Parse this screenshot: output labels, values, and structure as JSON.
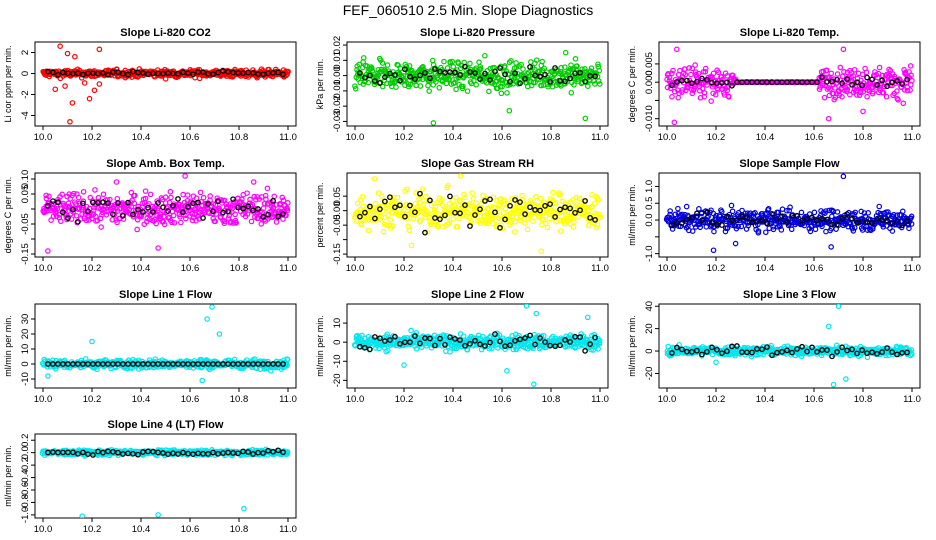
{
  "page": {
    "title": "FEF_060510  2.5 Min. Slope Diagnostics"
  },
  "chart_data": [
    {
      "type": "scatter",
      "title": "Slope Li-820 CO2",
      "ylabel": "Li cor ppm per min.",
      "color": "#ff0000",
      "xlim": [
        10.0,
        11.0
      ],
      "xticks": [
        "10.0",
        "10.2",
        "10.4",
        "10.6",
        "10.8",
        "11.0"
      ],
      "ylim": [
        -5,
        3
      ],
      "yticks": [
        -4,
        -2,
        0,
        2
      ],
      "ytick_labels": [
        "-4",
        "-2",
        "0",
        "2"
      ],
      "spread": 0.35,
      "outliers": [
        [
          10.07,
          2.6
        ],
        [
          10.11,
          -4.6
        ],
        [
          10.12,
          -2.8
        ],
        [
          10.13,
          1.6
        ],
        [
          10.09,
          -1.2
        ],
        [
          10.19,
          -2.4
        ],
        [
          10.21,
          -1.6
        ],
        [
          10.23,
          -1.0
        ],
        [
          10.1,
          1.9
        ],
        [
          10.17,
          -0.9
        ],
        [
          10.23,
          2.3
        ],
        [
          10.05,
          -1.5
        ]
      ],
      "black_spread": 0.2,
      "flat_segment": null
    },
    {
      "type": "scatter",
      "title": "Slope Li-820 Pressure",
      "ylabel": "kPa per min.",
      "color": "#00cc00",
      "xlim": [
        10.0,
        11.0
      ],
      "xticks": [
        "10.0",
        "10.2",
        "10.4",
        "10.6",
        "10.8",
        "11.0"
      ],
      "ylim": [
        -0.033,
        0.022
      ],
      "yticks": [
        -0.03,
        -0.02,
        -0.01,
        0,
        0.01,
        0.02
      ],
      "ytick_labels": [
        "-0.03",
        "-0.02",
        "-0.01",
        "0.00",
        "0.01",
        "0.02"
      ],
      "spread": 0.009,
      "outliers": [
        [
          10.32,
          -0.031
        ],
        [
          10.94,
          -0.028
        ],
        [
          10.63,
          -0.023
        ],
        [
          10.9,
          0.011
        ],
        [
          10.53,
          0.013
        ],
        [
          10.86,
          0.015
        ]
      ],
      "black_spread": 0.006,
      "flat_segment": null
    },
    {
      "type": "scatter",
      "title": "Slope Li-820 Temp.",
      "ylabel": "degrees C per min.",
      "color": "#ff00ff",
      "xlim": [
        10.0,
        11.0
      ],
      "xticks": [
        "10.0",
        "10.2",
        "10.4",
        "10.6",
        "10.8",
        "11.0"
      ],
      "ylim": [
        -0.012,
        0.011
      ],
      "yticks": [
        -0.01,
        -0.005,
        0,
        0.005
      ],
      "ytick_labels": [
        "-0.010",
        "0.000",
        "0.005"
      ],
      "ytick_label_at": [
        -0.01,
        0,
        0.005
      ],
      "spread": 0.004,
      "outliers": [
        [
          10.03,
          -0.011
        ],
        [
          10.04,
          0.009
        ],
        [
          10.66,
          -0.01
        ],
        [
          10.72,
          0.009
        ],
        [
          10.8,
          -0.008
        ]
      ],
      "black_spread": 0.002,
      "flat_segment": [
        10.28,
        10.62
      ]
    },
    {
      "type": "scatter",
      "title": "Slope Amb. Box Temp.",
      "ylabel": "degrees C per min.",
      "color": "#ff00ff",
      "xlim": [
        10.0,
        11.0
      ],
      "xticks": [
        "10.0",
        "10.2",
        "10.4",
        "10.6",
        "10.8",
        "11.0"
      ],
      "ylim": [
        -0.16,
        0.12
      ],
      "yticks": [
        -0.15,
        -0.1,
        -0.05,
        0,
        0.05,
        0.1
      ],
      "ytick_labels": [
        "-0.15",
        "-0.05",
        "0.05",
        "0.10"
      ],
      "ytick_label_at": [
        -0.15,
        -0.05,
        0.05,
        0.1
      ],
      "spread": 0.05,
      "outliers": [
        [
          10.02,
          -0.14
        ],
        [
          10.47,
          -0.13
        ],
        [
          10.58,
          0.11
        ],
        [
          10.3,
          0.09
        ],
        [
          10.86,
          0.09
        ]
      ],
      "black_spread": 0.04,
      "flat_segment": null
    },
    {
      "type": "scatter",
      "title": "Slope Gas Stream RH",
      "ylabel": "percent per min.",
      "color": "#ffff00",
      "xlim": [
        10.0,
        11.0
      ],
      "xticks": [
        "10.0",
        "10.2",
        "10.4",
        "10.6",
        "10.8",
        "11.0"
      ],
      "ylim": [
        -0.16,
        0.13
      ],
      "yticks": [
        -0.15,
        -0.1,
        -0.05,
        0,
        0.05
      ],
      "ytick_labels": [
        "-0.15",
        "-0.05",
        "0.00",
        "0.05"
      ],
      "ytick_label_at": [
        -0.15,
        -0.05,
        0,
        0.05
      ],
      "spread": 0.06,
      "outliers": [
        [
          10.43,
          0.12
        ],
        [
          10.76,
          -0.14
        ],
        [
          10.23,
          -0.12
        ],
        [
          10.08,
          0.11
        ]
      ],
      "black_spread": 0.05,
      "flat_segment": null
    },
    {
      "type": "scatter",
      "title": "Slope Sample Flow",
      "ylabel": "ml/min per min.",
      "color": "#0000dd",
      "xlim": [
        10.0,
        11.0
      ],
      "xticks": [
        "10.0",
        "10.2",
        "10.4",
        "10.6",
        "10.8",
        "11.0"
      ],
      "ylim": [
        -1.1,
        1.4
      ],
      "yticks": [
        -1.0,
        -0.5,
        0,
        0.5,
        1.0
      ],
      "ytick_labels": [
        "-1.0",
        "0.0",
        "0.5",
        "1.0"
      ],
      "ytick_label_at": [
        -1.0,
        0,
        0.5,
        1.0
      ],
      "spread": 0.3,
      "outliers": [
        [
          10.72,
          1.3
        ],
        [
          10.19,
          -0.9
        ],
        [
          10.28,
          -0.7
        ],
        [
          10.67,
          -0.8
        ]
      ],
      "black_spread": 0.2,
      "flat_segment": null
    },
    {
      "type": "scatter",
      "title": "Slope Line 1 Flow",
      "ylabel": "ml/min per min.",
      "color": "#00e5ee",
      "xlim": [
        10.0,
        11.0
      ],
      "xticks": [
        "10.0",
        "10.2",
        "10.4",
        "10.6",
        "10.8",
        "11.0"
      ],
      "ylim": [
        -16,
        40
      ],
      "yticks": [
        -10,
        0,
        10,
        20,
        30
      ],
      "ytick_labels": [
        "-10",
        "0",
        "10",
        "20",
        "30"
      ],
      "spread": 3,
      "outliers": [
        [
          10.69,
          38
        ],
        [
          10.67,
          30
        ],
        [
          10.72,
          20
        ],
        [
          10.2,
          15
        ],
        [
          10.65,
          -11
        ],
        [
          10.02,
          -8
        ]
      ],
      "black_spread": 0.0,
      "flat_segment": null
    },
    {
      "type": "scatter",
      "title": "Slope Line 2 Flow",
      "ylabel": "ml/min per min.",
      "color": "#00e5ee",
      "xlim": [
        10.0,
        11.0
      ],
      "xticks": [
        "10.0",
        "10.2",
        "10.4",
        "10.6",
        "10.8",
        "11.0"
      ],
      "ylim": [
        -24,
        20
      ],
      "yticks": [
        -20,
        -10,
        0,
        10
      ],
      "ytick_labels": [
        "-20",
        "-10",
        "0",
        "10"
      ],
      "spread": 4,
      "outliers": [
        [
          10.7,
          19
        ],
        [
          10.74,
          15
        ],
        [
          10.62,
          -15
        ],
        [
          10.95,
          13
        ],
        [
          10.2,
          -12
        ],
        [
          10.73,
          -22
        ]
      ],
      "black_spread": 4,
      "flat_segment": null
    },
    {
      "type": "scatter",
      "title": "Slope Line 3 Flow",
      "ylabel": "ml/min per min.",
      "color": "#00e5ee",
      "xlim": [
        10.0,
        11.0
      ],
      "xticks": [
        "10.0",
        "10.2",
        "10.4",
        "10.6",
        "10.8",
        "11.0"
      ],
      "ylim": [
        -33,
        42
      ],
      "yticks": [
        -20,
        0,
        20,
        40
      ],
      "ytick_labels": [
        "-20",
        "0",
        "20",
        "40"
      ],
      "spread": 4,
      "outliers": [
        [
          10.7,
          40
        ],
        [
          10.68,
          -30
        ],
        [
          10.73,
          -25
        ],
        [
          10.66,
          22
        ],
        [
          10.2,
          -10
        ]
      ],
      "black_spread": 4,
      "flat_segment": null
    },
    {
      "type": "scatter",
      "title": "Slope Line 4 (LT) Flow",
      "ylabel": "ml/min per min.",
      "color": "#00e5ee",
      "xlim": [
        10.0,
        11.0
      ],
      "xticks": [
        "10.0",
        "10.2",
        "10.4",
        "10.6",
        "10.8",
        "11.0"
      ],
      "ylim": [
        -1.05,
        0.3
      ],
      "yticks": [
        -1.0,
        -0.8,
        -0.6,
        -0.4,
        -0.2,
        0,
        0.2
      ],
      "ytick_labels": [
        "-1.0",
        "-0.8",
        "-0.6",
        "-0.4",
        "-0.2",
        "0.0",
        "0.2"
      ],
      "spread": 0.04,
      "outliers": [
        [
          10.16,
          -1.02
        ],
        [
          10.47,
          -1.0
        ],
        [
          10.82,
          -0.9
        ],
        [
          10.13,
          -0.02
        ],
        [
          10.45,
          0.02
        ]
      ],
      "black_spread": 0.03,
      "flat_segment": null
    }
  ]
}
